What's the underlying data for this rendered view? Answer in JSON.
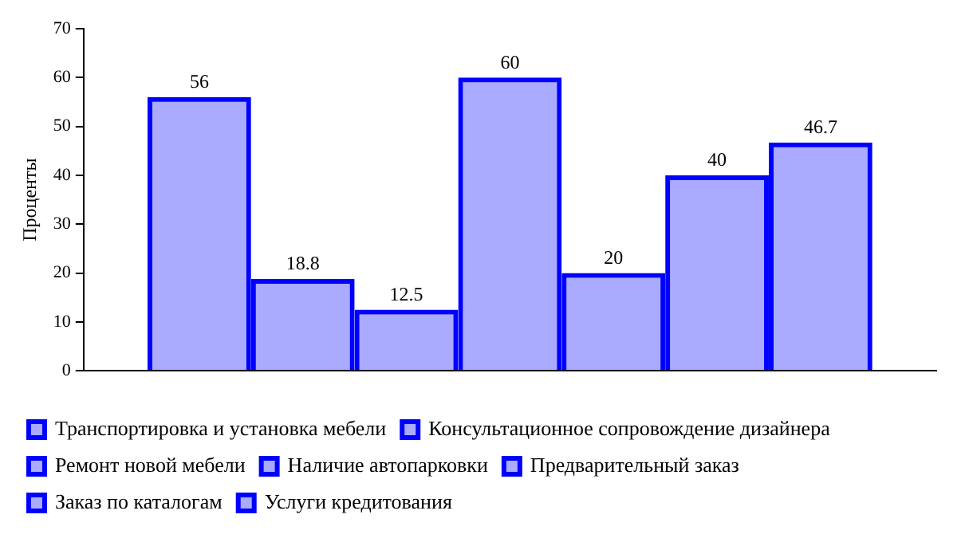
{
  "chart_data": {
    "type": "bar",
    "ylabel": "Проценты",
    "categories": [
      null
    ],
    "series": [
      {
        "name": "Транспортировка и установка мебели",
        "color": "#0000ff",
        "values": [
          56
        ]
      },
      {
        "name": "Консультационное сопровождение дизайнера",
        "color": "#0000ff",
        "values": [
          18.8
        ]
      },
      {
        "name": "Ремонт новой мебели",
        "color": "#0000ff",
        "values": [
          12.5
        ]
      },
      {
        "name": "Наличие автопарковки",
        "color": "#0000ff",
        "values": [
          60
        ]
      },
      {
        "name": "Предварительный заказ",
        "color": "#0000ff",
        "values": [
          20
        ]
      },
      {
        "name": "Заказ по каталогам",
        "color": "#0000ff",
        "values": [
          40
        ]
      },
      {
        "name": "Услуги кредитования",
        "color": "#0000ff",
        "values": [
          46.7
        ]
      }
    ],
    "ylim": [
      0,
      70
    ],
    "yticks": [
      0,
      10,
      20,
      30,
      40,
      50,
      60,
      70
    ],
    "grid": false,
    "legend": "bottom",
    "data_labels": true
  }
}
